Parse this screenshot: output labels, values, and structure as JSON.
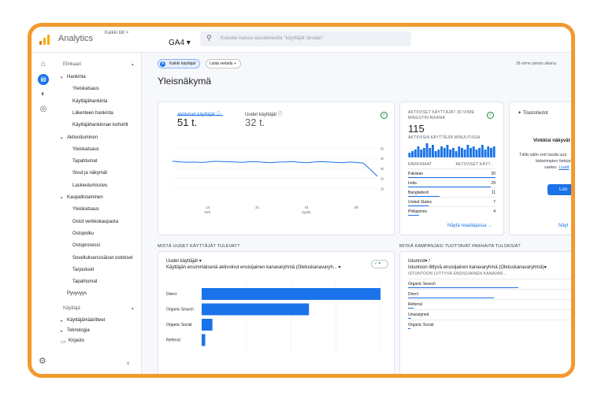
{
  "topbar": {
    "app_name": "Analytics",
    "account_crumb": "Kaikki tilit >",
    "property": "GA4 ▾",
    "search_placeholder": "Kokeile hakea lausekkeella \"käyttäjät tänään\""
  },
  "nav": {
    "lifecycle_title": "Elinkaari",
    "items": [
      {
        "label": "Hankinta",
        "level": 0,
        "caret": "▾"
      },
      {
        "label": "Yleiskatsaus",
        "level": 1
      },
      {
        "label": "Käyttäjähankinta",
        "level": 1
      },
      {
        "label": "Liikenteen hankinta",
        "level": 1
      },
      {
        "label": "Käyttäjähankinnan kohortit",
        "level": 1
      },
      {
        "label": "Aktivoituminen",
        "level": 0,
        "caret": "▾"
      },
      {
        "label": "Yleiskatsaus",
        "level": 1
      },
      {
        "label": "Tapahtumat",
        "level": 1
      },
      {
        "label": "Sivut ja näkymät",
        "level": 1
      },
      {
        "label": "Laskeutumissivu",
        "level": 1
      },
      {
        "label": "Kaupallistaminen",
        "level": 0,
        "caret": "▾"
      },
      {
        "label": "Yleiskatsaus",
        "level": 1
      },
      {
        "label": "Ostot verkkokaupasta",
        "level": 1
      },
      {
        "label": "Ostopolku",
        "level": 1
      },
      {
        "label": "Ostoprosessi",
        "level": 1
      },
      {
        "label": "Sovelluksensisäiset ostokset",
        "level": 1
      },
      {
        "label": "Tarjoukset",
        "level": 1
      },
      {
        "label": "Tapahtumat",
        "level": 1
      },
      {
        "label": "Pysyvyys",
        "level": 0,
        "caret": ""
      }
    ],
    "user_title": "Käyttäjä",
    "user_items": [
      {
        "label": "Käyttäjämääritteet",
        "caret": "▸"
      },
      {
        "label": "Teknologia",
        "caret": "▸"
      }
    ],
    "library_label": "Kirjasto",
    "collapse_icon": "‹"
  },
  "filters": {
    "chip_all_users": "Kaikki käyttäjät",
    "chip_all_users_badge": "A",
    "chip_add_compare": "Lisää vertailu +",
    "date_range": "28 viime päivän aikana"
  },
  "page_title": "Yleisnäkymä",
  "overview_card": {
    "tabs": [
      {
        "label": "Aktiiviset käyttäjät ⓘ",
        "value": "51 t.",
        "active": true
      },
      {
        "label": "Uudet käyttäjät ⓘ",
        "value": "32 t.",
        "active": false
      }
    ],
    "chart_data": {
      "type": "line",
      "x_ticks": [
        "14\nmrk.",
        "21",
        "01\nsyysk.",
        "28"
      ],
      "y_ticks": [
        "5t.",
        "4t.",
        "3t.",
        "2t.",
        "1t."
      ],
      "ylim": [
        0,
        5500
      ],
      "series": [
        {
          "values": [
            3700,
            3650,
            3600,
            3620,
            3580,
            3620,
            3700,
            3680,
            3660,
            3620,
            3600,
            3680,
            3650,
            3600,
            3560,
            3620,
            3640,
            3680,
            3600,
            3550,
            3620,
            3660,
            3640,
            3600,
            3560,
            3620,
            3580,
            3520,
            2900,
            2200
          ]
        }
      ]
    }
  },
  "realtime_card": {
    "title": "AKTIIVISET KÄYTTÄJÄT 30 VIIME MINUUTIN AIKANA",
    "value": "115",
    "subtitle": "AKTIIVISIA KÄYTTÄJIÄ MINUUTISSA",
    "minute_bars": [
      3,
      4,
      5,
      7,
      5,
      6,
      9,
      6,
      8,
      4,
      5,
      7,
      6,
      8,
      5,
      6,
      4,
      7,
      6,
      5,
      8,
      6,
      7,
      5,
      6,
      8,
      5,
      7,
      6,
      7
    ],
    "col_country": "KÄRKIMAAT",
    "col_users": "AKTIIVISET KÄYT...",
    "rows": [
      {
        "country": "Pakistan",
        "users": "30",
        "share": 1.0
      },
      {
        "country": "India",
        "users": "29",
        "share": 0.95
      },
      {
        "country": "Bangladesh",
        "users": "11",
        "share": 0.36
      },
      {
        "country": "United States",
        "users": "7",
        "share": 0.23
      },
      {
        "country": "Philippines",
        "users": "4",
        "share": 0.13
      }
    ],
    "link": "Näytä reaaliajassa →"
  },
  "tips_card": {
    "title": "Tilastotiedot",
    "heading": "Vinkkisi näkyvät p",
    "body_1": "Tällä välin voit luoda uus",
    "body_2": "tärkeimpien tietojesi",
    "body_3": "varten.",
    "body_link": "Lisätt",
    "button": "Luo",
    "footer_link": "Näyt"
  },
  "new_users_section": {
    "title": "MISTÄ UUDET KÄYTTÄJÄT TULEVAT?",
    "metric": "Uudet käyttäjät ▾",
    "dimension": "Käyttäjän ensimmäisenä aktivoinut ensisijainen kanavaryhmä (Oletuskanavaryh... ▾",
    "chart_data": {
      "type": "bar",
      "orientation": "horizontal",
      "categories": [
        "Direct",
        "Organic Search",
        "Organic Social",
        "Referral"
      ],
      "values": [
        100,
        60,
        6,
        2
      ]
    }
  },
  "campaign_section": {
    "title": "MITKÄ KAMPANJASI TUOTTAVAT PARHAITA TULOKSIA?",
    "metric": "Istunnot▾ /",
    "dimension": "Istuntoon liittyvä ensisijainen kanavaryhmä (Oletuskanavaryhmä)▾",
    "col_header": "ISTUNTOON LIITTYVÄ ENSISIJAINEN KANAVAR...",
    "rows": [
      {
        "label": "Organic Search",
        "share": 1.0
      },
      {
        "label": "Direct",
        "share": 0.78
      },
      {
        "label": "Referral",
        "share": 0.05
      },
      {
        "label": "Unassigned",
        "share": 0.03
      },
      {
        "label": "Organic Social",
        "share": 0.02
      }
    ]
  },
  "colors": {
    "frame": "#f29a2e",
    "accent": "#1a73e8",
    "logo_orange": "#f9ab00",
    "logo_dark": "#e37400",
    "success": "#1e8e3e"
  }
}
